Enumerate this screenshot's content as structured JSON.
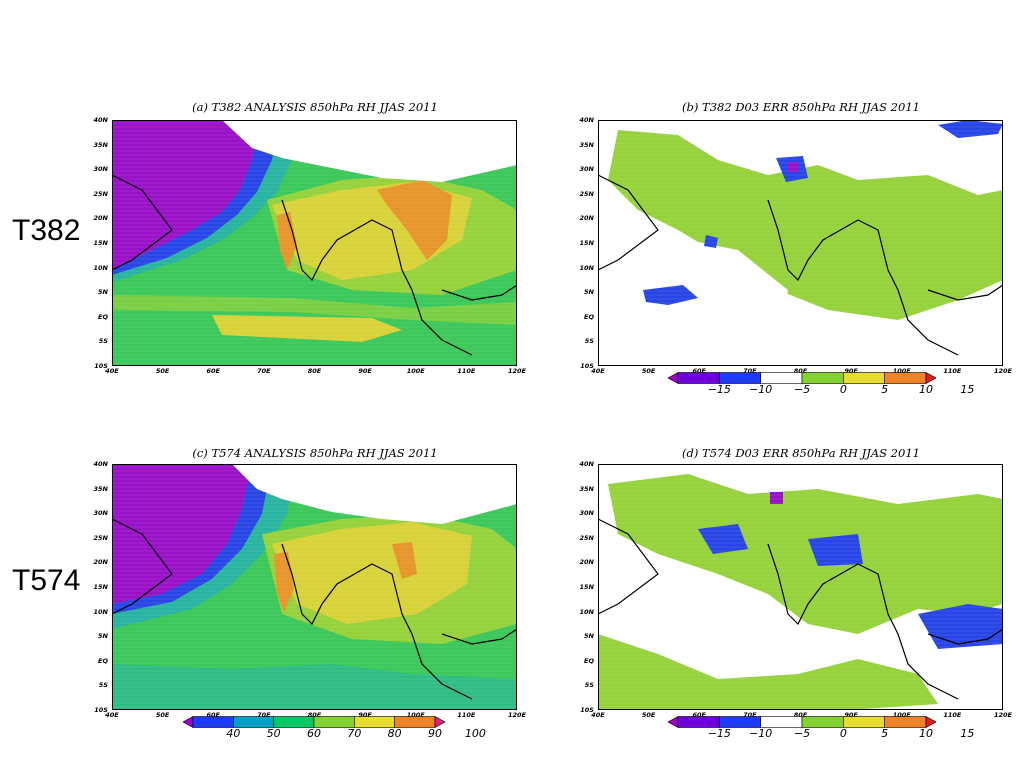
{
  "row_labels": [
    "T382",
    "T574"
  ],
  "panels": [
    {
      "id": "a",
      "title": "(a)  T382 ANALYSIS 850hPa RH JJAS 2011",
      "type": "analysis"
    },
    {
      "id": "b",
      "title": "(b) T382 D03 ERR 850hPa RH JJAS 2011",
      "type": "error"
    },
    {
      "id": "c",
      "title": "(c)  T574 ANALYSIS 850hPa RH JJAS 2011",
      "type": "analysis"
    },
    {
      "id": "d",
      "title": "(d) T574 D03 ERR 850hPa RH JJAS 2011",
      "type": "error"
    }
  ],
  "lat_labels": [
    "40N",
    "35N",
    "30N",
    "25N",
    "20N",
    "15N",
    "10N",
    "5N",
    "EQ",
    "5S",
    "10S"
  ],
  "lon_labels": [
    "40E",
    "50E",
    "60E",
    "70E",
    "80E",
    "90E",
    "100E",
    "110E",
    "120E"
  ],
  "colorbars": {
    "analysis": {
      "ticks": [
        "40",
        "50",
        "60",
        "70",
        "80",
        "90",
        "100"
      ],
      "colors": [
        "#a000c8",
        "#1e3cff",
        "#00a0c8",
        "#00c864",
        "#82d232",
        "#e6dc32",
        "#f08228",
        "#e11e78"
      ]
    },
    "error": {
      "ticks": [
        "−15",
        "−10",
        "−5",
        "0",
        "5",
        "10",
        "15"
      ],
      "colors": [
        "#a000c8",
        "#6e00dc",
        "#1e3cff",
        "#ffffff",
        "#82d232",
        "#e6dc32",
        "#f08228",
        "#e11e1e"
      ]
    }
  },
  "colors": {
    "purple": "#9a12c8",
    "blue": "#2846e6",
    "teal": "#28b4a0",
    "green": "#3cc85a",
    "light_green": "#96d23c",
    "yellow": "#d8d23a",
    "orange": "#e6962a",
    "magenta": "#e63c8c",
    "white": "#ffffff"
  }
}
